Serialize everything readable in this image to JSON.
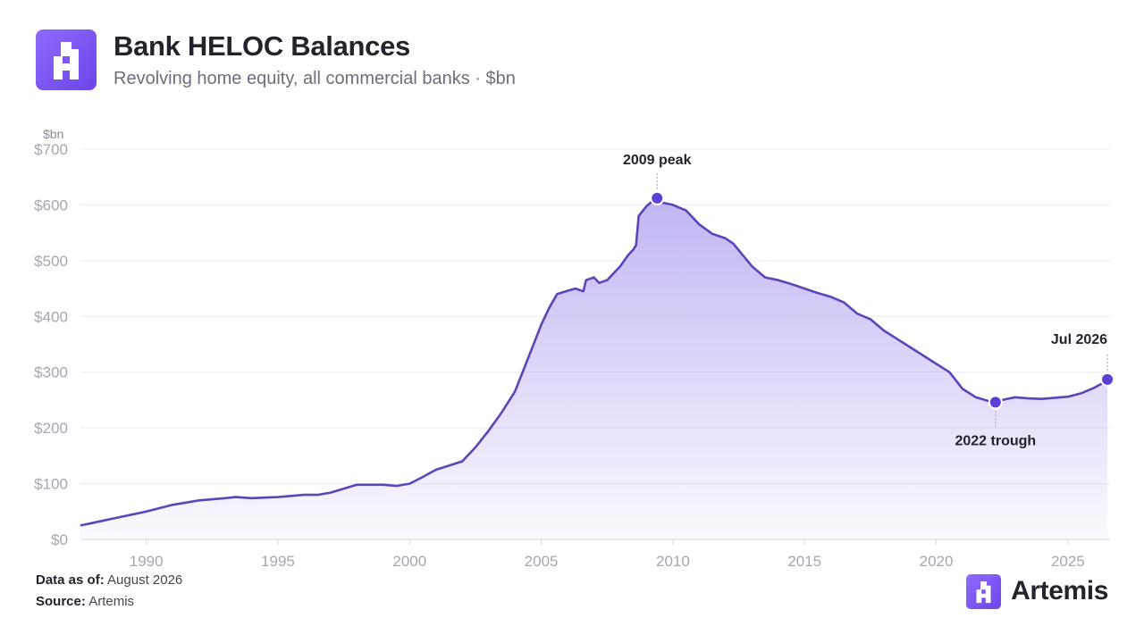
{
  "header": {
    "logo_icon": "artemis-logo-icon",
    "title": "Bank HELOC Balances",
    "subtitle": "Revolving home equity, all commercial banks · $bn"
  },
  "footer": {
    "data_as_of_label": "Data as of:",
    "data_as_of_value": "August 2026",
    "source_label": "Source:",
    "source_value": "Artemis",
    "brand_name": "Artemis"
  },
  "colors": {
    "line": "#5b45b8",
    "fill_top": "#b8a8f0",
    "marker": "#5b3fd6",
    "axis_text": "#a6a6b2",
    "grid": "#ececf1",
    "logo": "#7c5cf2"
  },
  "chart_data": {
    "type": "area",
    "title": "Bank HELOC Balances",
    "subtitle": "Revolving home equity, all commercial banks · $bn",
    "y_unit_label": "$bn",
    "xlim": [
      1987.5,
      2026.6
    ],
    "ylim": [
      0,
      700
    ],
    "grid": true,
    "x_ticks": [
      1990,
      1995,
      2000,
      2005,
      2010,
      2015,
      2020,
      2025
    ],
    "y_ticks": [
      0,
      100,
      200,
      300,
      400,
      500,
      600,
      700
    ],
    "y_tick_labels": [
      "$0",
      "$100",
      "$200",
      "$300",
      "$400",
      "$500",
      "$600",
      "$700"
    ],
    "series": [
      {
        "name": "",
        "x": [
          1987.5,
          1988,
          1989,
          1990,
          1991,
          1992,
          1993,
          1993.4,
          1994,
          1995,
          1996,
          1996.5,
          1997,
          1998,
          1999,
          1999.5,
          2000,
          2000.5,
          2001,
          2002,
          2002.5,
          2003,
          2003.5,
          2004,
          2004.5,
          2005,
          2005.3,
          2005.6,
          2006,
          2006.3,
          2006.6,
          2006.7,
          2007,
          2007.2,
          2007.5,
          2008,
          2008.3,
          2008.5,
          2008.6,
          2008.7,
          2009,
          2009.3,
          2009.6,
          2010,
          2010.5,
          2011,
          2011.5,
          2012,
          2012.3,
          2013,
          2013.5,
          2014,
          2014.5,
          2015,
          2015.5,
          2016,
          2016.5,
          2017,
          2017.5,
          2018,
          2018.5,
          2019,
          2019.5,
          2020,
          2020.5,
          2021,
          2021.5,
          2022,
          2022.25,
          2022.5,
          2023,
          2023.5,
          2024,
          2024.5,
          2025,
          2025.5,
          2026,
          2026.5
        ],
        "y": [
          25,
          30,
          40,
          50,
          62,
          70,
          74,
          76,
          74,
          76,
          80,
          80,
          84,
          98,
          98,
          96,
          100,
          112,
          125,
          140,
          165,
          195,
          228,
          265,
          325,
          385,
          415,
          440,
          446,
          450,
          445,
          465,
          470,
          460,
          465,
          490,
          510,
          520,
          528,
          580,
          598,
          610,
          604,
          600,
          590,
          565,
          548,
          540,
          530,
          490,
          470,
          465,
          458,
          450,
          442,
          435,
          425,
          405,
          395,
          375,
          360,
          345,
          330,
          315,
          300,
          270,
          255,
          248,
          246,
          250,
          255,
          253,
          252,
          254,
          256,
          262,
          272,
          285
        ]
      }
    ],
    "annotations": [
      {
        "label": "2009 peak",
        "x": 2009.4,
        "y": 612
      },
      {
        "label": "2022 trough",
        "x": 2022.25,
        "y": 246
      },
      {
        "label": "Jul 2026",
        "x": 2026.5,
        "y": 287
      }
    ]
  }
}
